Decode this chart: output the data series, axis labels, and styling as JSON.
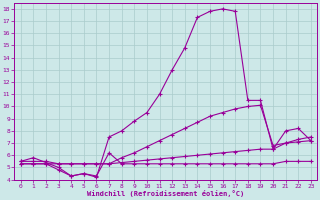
{
  "xlabel": "Windchill (Refroidissement éolien,°C)",
  "bg_color": "#cde8e8",
  "line_color": "#990099",
  "grid_color": "#aacccc",
  "xlim": [
    -0.5,
    23.5
  ],
  "ylim": [
    4,
    18.5
  ],
  "xticks": [
    0,
    1,
    2,
    3,
    4,
    5,
    6,
    7,
    8,
    9,
    10,
    11,
    12,
    13,
    14,
    15,
    16,
    17,
    18,
    19,
    20,
    21,
    22,
    23
  ],
  "yticks": [
    4,
    5,
    6,
    7,
    8,
    9,
    10,
    11,
    12,
    13,
    14,
    15,
    16,
    17,
    18
  ],
  "series": [
    {
      "x": [
        0,
        1,
        2,
        3,
        4,
        5,
        6,
        7,
        8,
        9,
        10,
        11,
        12,
        13,
        14,
        15,
        16,
        17,
        18,
        19,
        20,
        21,
        22,
        23
      ],
      "y": [
        5.5,
        5.8,
        5.4,
        5.0,
        4.3,
        4.5,
        4.2,
        7.5,
        8.0,
        8.8,
        9.5,
        11.0,
        13.0,
        14.8,
        17.3,
        17.8,
        18.0,
        17.8,
        10.5,
        10.5,
        6.5,
        8.0,
        8.2,
        7.2
      ]
    },
    {
      "x": [
        0,
        1,
        2,
        3,
        4,
        5,
        6,
        7,
        8,
        9,
        10,
        11,
        12,
        13,
        14,
        15,
        16,
        17,
        18,
        19,
        20,
        21,
        22,
        23
      ],
      "y": [
        5.5,
        5.5,
        5.5,
        5.3,
        5.3,
        5.3,
        5.3,
        5.3,
        5.8,
        6.2,
        6.7,
        7.2,
        7.7,
        8.2,
        8.7,
        9.2,
        9.5,
        9.8,
        10.0,
        10.1,
        6.8,
        7.0,
        7.1,
        7.2
      ]
    },
    {
      "x": [
        0,
        1,
        2,
        3,
        4,
        5,
        6,
        7,
        8,
        9,
        10,
        11,
        12,
        13,
        14,
        15,
        16,
        17,
        18,
        19,
        20,
        21,
        22,
        23
      ],
      "y": [
        5.3,
        5.3,
        5.3,
        5.3,
        5.3,
        5.3,
        5.3,
        5.3,
        5.4,
        5.5,
        5.6,
        5.7,
        5.8,
        5.9,
        6.0,
        6.1,
        6.2,
        6.3,
        6.4,
        6.5,
        6.5,
        7.0,
        7.3,
        7.5
      ]
    },
    {
      "x": [
        0,
        1,
        2,
        3,
        4,
        5,
        6,
        7,
        8,
        9,
        10,
        11,
        12,
        13,
        14,
        15,
        16,
        17,
        18,
        19,
        20,
        21,
        22,
        23
      ],
      "y": [
        5.3,
        5.3,
        5.3,
        4.8,
        4.3,
        4.5,
        4.3,
        6.2,
        5.3,
        5.3,
        5.3,
        5.3,
        5.3,
        5.3,
        5.3,
        5.3,
        5.3,
        5.3,
        5.3,
        5.3,
        5.3,
        5.5,
        5.5,
        5.5
      ]
    }
  ]
}
